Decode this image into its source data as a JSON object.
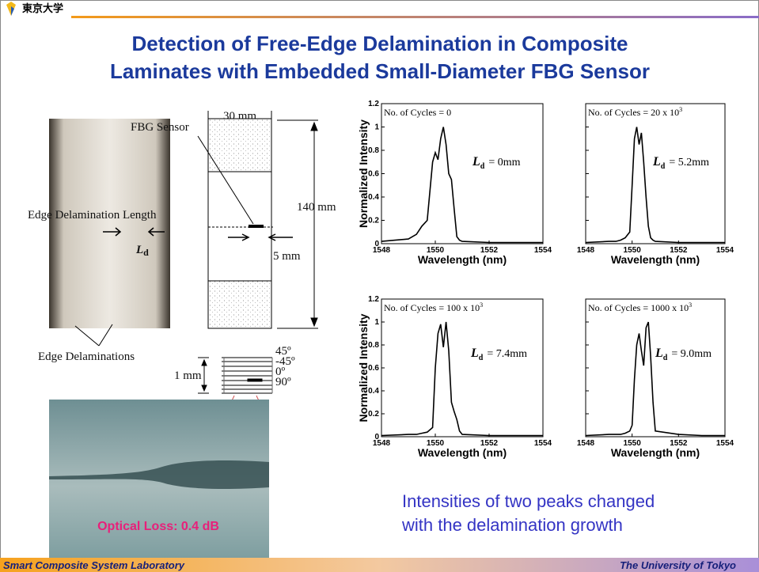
{
  "header": {
    "logo": "東京大学"
  },
  "title": [
    "Detection of Free-Edge Delamination in Composite",
    "Laminates with Embedded Small-Diameter FBG Sensor"
  ],
  "specimen_figure": {
    "width": "30 mm",
    "length": "140 mm",
    "sensor": "FBG Sensor",
    "sensor_offset": "5 mm",
    "edge_length": "Edge Delamination Length",
    "edge_symbol": {
      "symbol": "L",
      "subscript": "d"
    },
    "edge_delaminations": "Edge Delaminations",
    "thickness": "1 mm",
    "plies": [
      "45º",
      "-45º",
      "0º",
      "90º"
    ]
  },
  "photo_caption": "Optical Loss: 0.4 dB",
  "chart_data": [
    {
      "type": "line",
      "x": [
        1548,
        1549,
        1549.3,
        1549.5,
        1549.7,
        1549.9,
        1550.0,
        1550.1,
        1550.2,
        1550.3,
        1550.4,
        1550.5,
        1550.6,
        1550.7,
        1550.8,
        1550.9,
        1551,
        1552,
        1553,
        1554
      ],
      "series": [
        {
          "color": "#000000",
          "values": [
            0.02,
            0.04,
            0.08,
            0.15,
            0.2,
            0.7,
            0.78,
            0.72,
            0.9,
            1.0,
            0.85,
            0.6,
            0.55,
            0.3,
            0.06,
            0.03,
            0.02,
            0.01,
            0.01,
            0.01
          ]
        }
      ],
      "xlim": [
        1548,
        1554
      ],
      "ylim": [
        0,
        1.2
      ],
      "xticks": [
        1548,
        1550,
        1552,
        1554
      ],
      "yticks": [
        0,
        0.2,
        0.4,
        0.6,
        0.8,
        1,
        1.2
      ],
      "ytick_labels": true,
      "xlabel": "Wavelength (nm)",
      "ylabel": "Normalized Intensity",
      "cycles": {
        "text": "No. of Cycles = 0"
      },
      "delamination": {
        "symbol": "L",
        "subscript": "d",
        "text": "= 0mm"
      }
    },
    {
      "type": "line",
      "x": [
        1548,
        1549,
        1549.3,
        1549.5,
        1549.7,
        1549.9,
        1550.0,
        1550.1,
        1550.2,
        1550.3,
        1550.4,
        1550.5,
        1550.6,
        1550.7,
        1550.8,
        1550.9,
        1551,
        1552,
        1553,
        1554
      ],
      "series": [
        {
          "color": "#000000",
          "values": [
            0.01,
            0.02,
            0.02,
            0.03,
            0.05,
            0.1,
            0.5,
            0.9,
            1.0,
            0.85,
            0.95,
            0.7,
            0.4,
            0.15,
            0.05,
            0.03,
            0.02,
            0.01,
            0.01,
            0.01
          ]
        }
      ],
      "xlim": [
        1548,
        1554
      ],
      "ylim": [
        0,
        1.2
      ],
      "xticks": [
        1548,
        1550,
        1552,
        1554
      ],
      "yticks": [
        0,
        0.2,
        0.4,
        0.6,
        0.8,
        1,
        1.2
      ],
      "ytick_labels": false,
      "xlabel": "Wavelength (nm)",
      "cycles": {
        "text": "No. of Cycles = 20 x 10",
        "sup": "3"
      },
      "delamination": {
        "symbol": "L",
        "subscript": "d",
        "text": "= 5.2mm"
      }
    },
    {
      "type": "line",
      "x": [
        1548,
        1549,
        1549.3,
        1549.5,
        1549.7,
        1549.9,
        1550.0,
        1550.1,
        1550.2,
        1550.3,
        1550.4,
        1550.5,
        1550.6,
        1550.7,
        1550.8,
        1550.9,
        1551,
        1552,
        1553,
        1554
      ],
      "series": [
        {
          "color": "#000000",
          "values": [
            0.01,
            0.02,
            0.02,
            0.03,
            0.04,
            0.08,
            0.6,
            0.9,
            0.98,
            0.78,
            1.0,
            0.75,
            0.3,
            0.22,
            0.15,
            0.05,
            0.02,
            0.01,
            0.01,
            0.01
          ]
        }
      ],
      "xlim": [
        1548,
        1554
      ],
      "ylim": [
        0,
        1.2
      ],
      "xticks": [
        1548,
        1550,
        1552,
        1554
      ],
      "yticks": [
        0,
        0.2,
        0.4,
        0.6,
        0.8,
        1,
        1.2
      ],
      "ytick_labels": true,
      "xlabel": "Wavelength (nm)",
      "ylabel": "Normalized Intensity",
      "cycles": {
        "text": "No. of Cycles = 100 x 10",
        "sup": "3"
      },
      "delamination": {
        "symbol": "L",
        "subscript": "d",
        "text": "= 7.4mm"
      }
    },
    {
      "type": "line",
      "x": [
        1548,
        1549,
        1549.3,
        1549.5,
        1549.7,
        1549.9,
        1550.0,
        1550.1,
        1550.2,
        1550.3,
        1550.4,
        1550.5,
        1550.6,
        1550.7,
        1550.8,
        1550.9,
        1551,
        1552,
        1553,
        1554
      ],
      "series": [
        {
          "color": "#000000",
          "values": [
            0.01,
            0.02,
            0.02,
            0.02,
            0.03,
            0.05,
            0.1,
            0.5,
            0.8,
            0.9,
            0.75,
            0.62,
            0.95,
            1.0,
            0.7,
            0.3,
            0.05,
            0.02,
            0.01,
            0.01
          ]
        }
      ],
      "xlim": [
        1548,
        1554
      ],
      "ylim": [
        0,
        1.2
      ],
      "xticks": [
        1548,
        1550,
        1552,
        1554
      ],
      "yticks": [
        0,
        0.2,
        0.4,
        0.6,
        0.8,
        1,
        1.2
      ],
      "ytick_labels": false,
      "xlabel": "Wavelength (nm)",
      "cycles": {
        "text": "No. of Cycles = 1000 x 10",
        "sup": "3"
      },
      "delamination": {
        "symbol": "L",
        "subscript": "d",
        "text": "= 9.0mm"
      }
    }
  ],
  "conclusion": [
    "Intensities of two peaks changed",
    "with the delamination growth"
  ],
  "footer": {
    "left": "Smart Composite System Laboratory",
    "right": "The University of Tokyo"
  }
}
